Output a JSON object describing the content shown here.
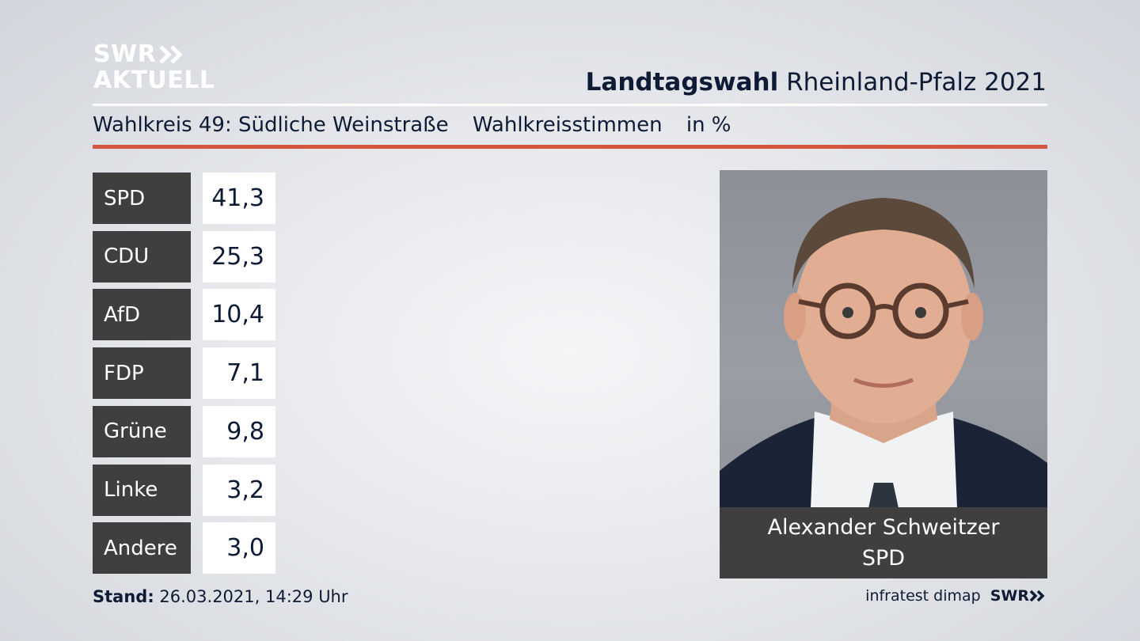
{
  "logo": {
    "line1": "SWR",
    "line2": "AKTUELL"
  },
  "header": {
    "title_bold": "Landtagswahl",
    "title_rest": "Rheinland-Pfalz 2021"
  },
  "subheader": {
    "district": "Wahlkreis 49: Südliche Weinstraße",
    "measure": "Wahlkreisstimmen",
    "unit": "in %"
  },
  "chart_data": {
    "type": "table",
    "title": "Landtagswahl Rheinland-Pfalz 2021",
    "subtitle": "Wahlkreis 49: Südliche Weinstraße  Wahlkreisstimmen  in %",
    "categories": [
      "SPD",
      "CDU",
      "AfD",
      "FDP",
      "Grüne",
      "Linke",
      "Andere"
    ],
    "values": [
      41.3,
      25.3,
      10.4,
      7.1,
      9.8,
      3.2,
      3.0
    ],
    "value_labels": [
      "41,3",
      "25,3",
      "10,4",
      "7,1",
      "9,8",
      "3,2",
      "3,0"
    ]
  },
  "candidate": {
    "name": "Alexander Schweitzer",
    "party": "SPD"
  },
  "footer": {
    "stand_label": "Stand:",
    "stand_value": "26.03.2021, 14:29 Uhr",
    "source": "infratest dimap",
    "brand": "SWR"
  },
  "colors": {
    "accent_red": "#d4553d",
    "label_bg": "#3f3f3f",
    "text_navy": "#0d1b35"
  }
}
